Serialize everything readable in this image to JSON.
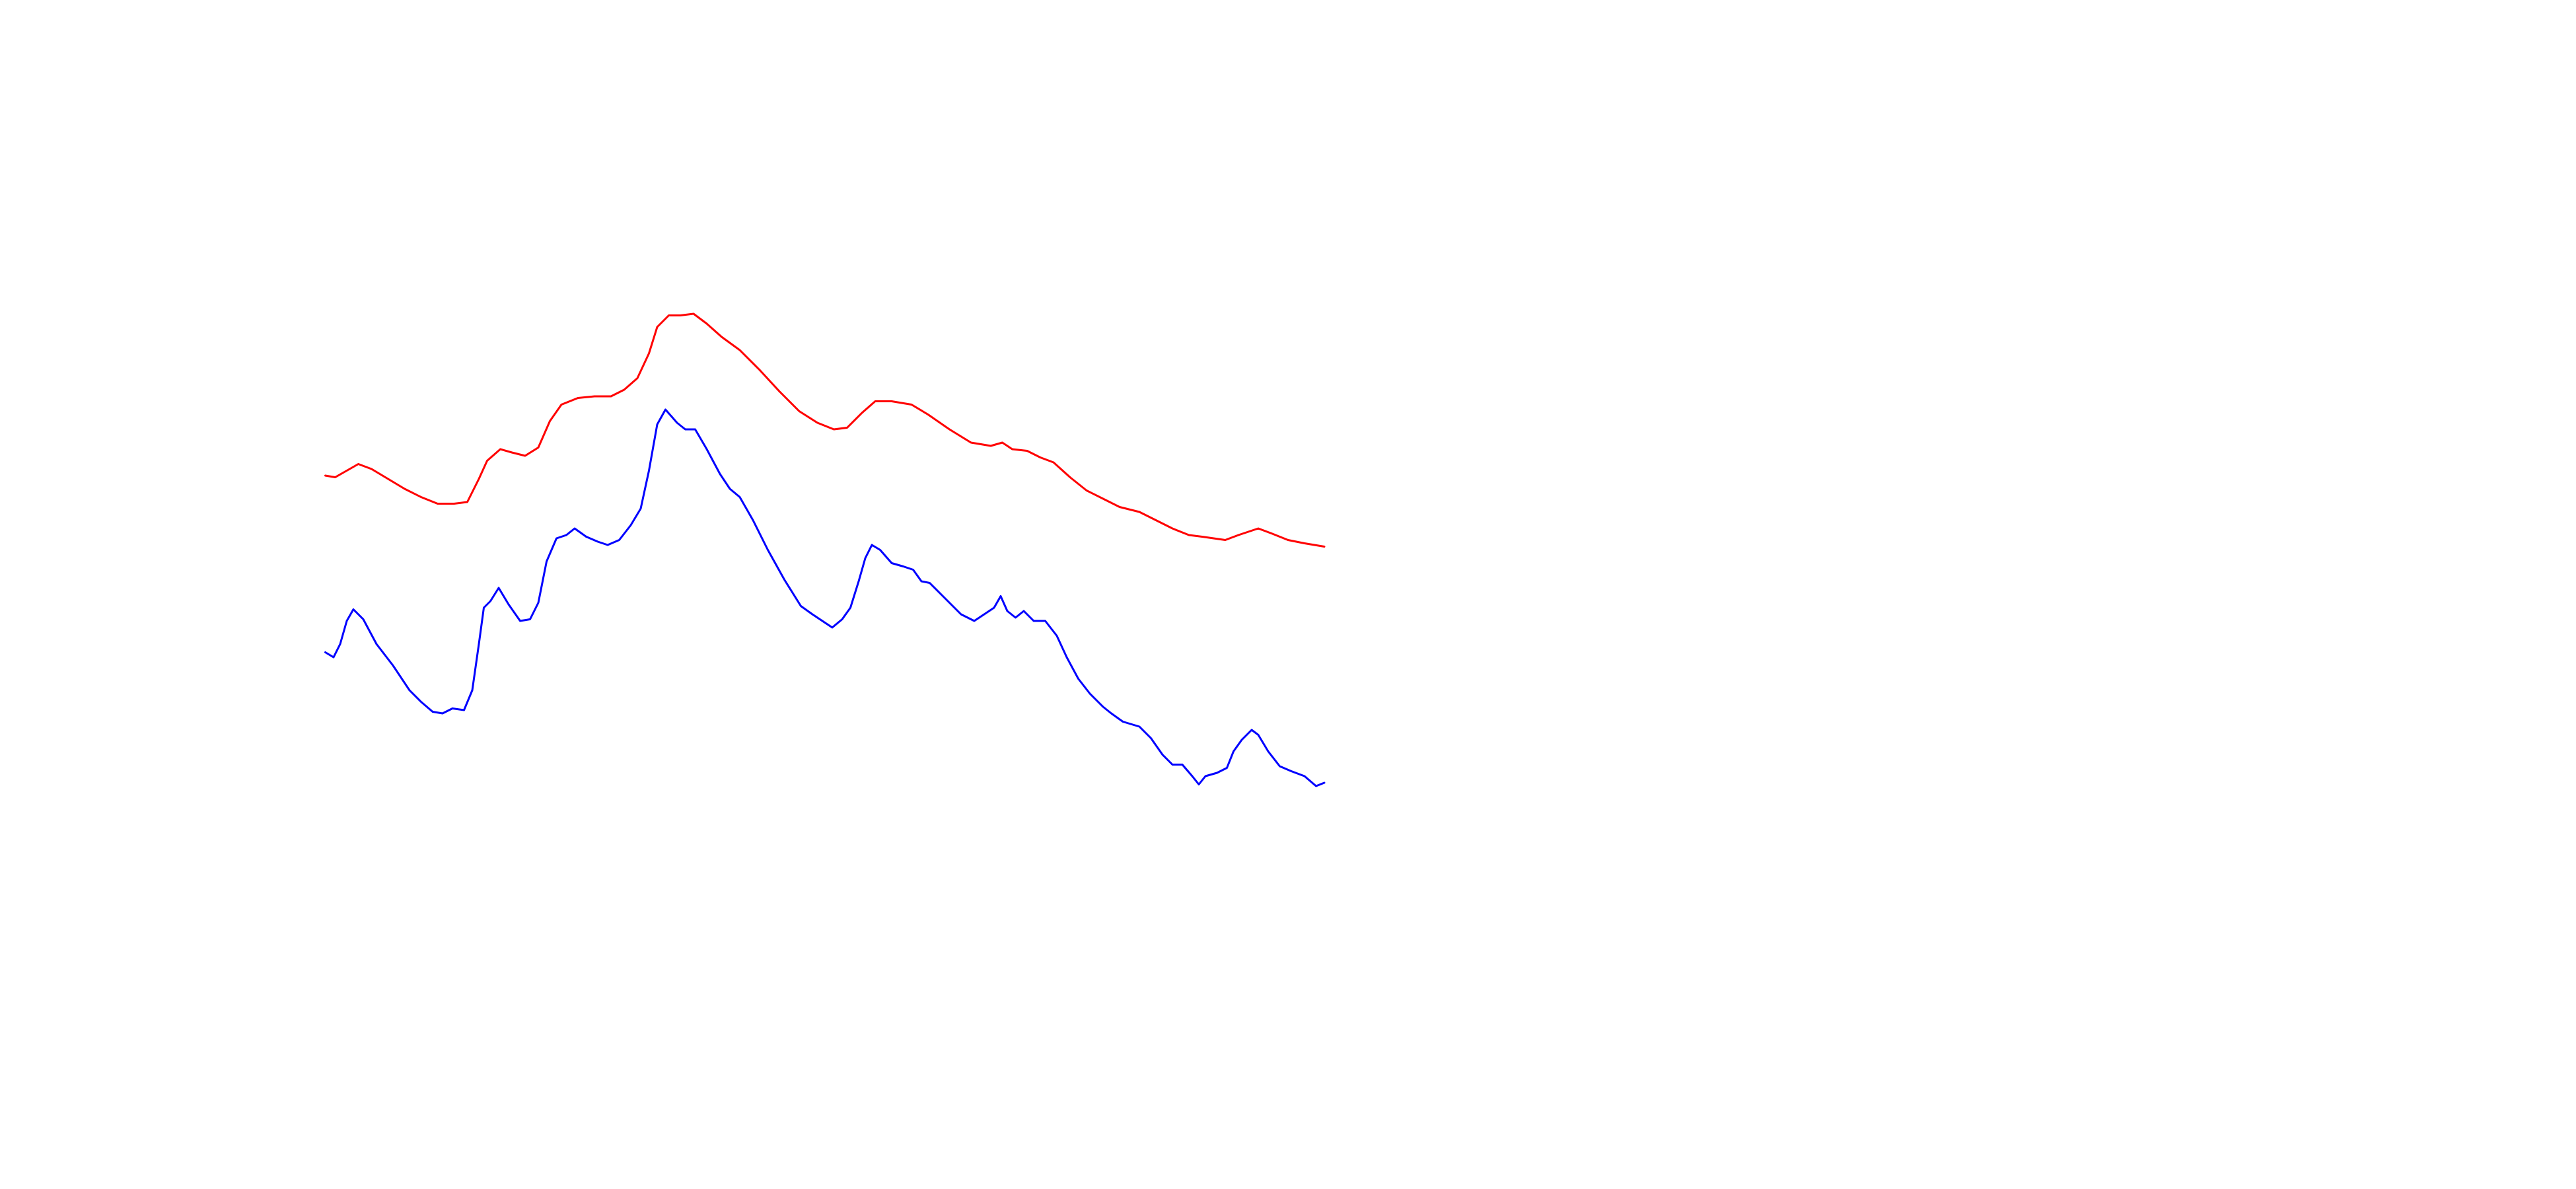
{
  "chart_data": {
    "type": "line",
    "xlim": [
      0,
      1560
    ],
    "ylim": [
      0,
      720
    ],
    "series": [
      {
        "color": "#ff0000",
        "x": [
          197,
          203,
          210,
          217,
          225,
          235,
          245,
          255,
          265,
          275,
          283,
          290,
          295,
          303,
          310,
          318,
          326,
          333,
          340,
          350,
          360,
          370,
          378,
          386,
          393,
          398,
          405,
          412,
          420,
          428,
          437,
          448,
          460,
          472,
          484,
          495,
          505,
          513,
          522,
          530,
          540,
          552,
          562,
          575,
          588,
          600,
          607,
          613,
          622,
          630,
          638,
          648,
          658,
          668,
          678,
          690,
          700,
          710,
          720,
          728,
          735,
          742,
          750,
          756,
          762,
          770,
          780,
          790,
          802
        ],
        "values": [
          432,
          431,
          435,
          439,
          436,
          430,
          424,
          419,
          415,
          415,
          416,
          430,
          441,
          448,
          446,
          444,
          449,
          465,
          475,
          479,
          480,
          480,
          484,
          491,
          506,
          522,
          529,
          529,
          530,
          524,
          516,
          508,
          496,
          483,
          471,
          464,
          460,
          461,
          470,
          477,
          477,
          475,
          469,
          460,
          452,
          450,
          452,
          448,
          447,
          443,
          440,
          431,
          423,
          418,
          413,
          410,
          405,
          400,
          396,
          395,
          394,
          393,
          396,
          398,
          400,
          397,
          393,
          391,
          389
        ]
      },
      {
        "color": "#0000ff",
        "x": [
          197,
          202,
          206,
          210,
          214,
          220,
          228,
          238,
          248,
          255,
          262,
          268,
          274,
          281,
          286,
          290,
          293,
          297,
          302,
          308,
          315,
          321,
          326,
          331,
          337,
          343,
          348,
          355,
          362,
          368,
          375,
          382,
          388,
          393,
          398,
          403,
          410,
          415,
          421,
          428,
          436,
          442,
          448,
          456,
          465,
          475,
          485,
          492,
          498,
          504,
          510,
          515,
          520,
          524,
          528,
          533,
          540,
          547,
          553,
          558,
          563,
          570,
          576,
          582,
          590,
          596,
          602,
          606,
          610,
          615,
          620,
          626,
          633,
          640,
          646,
          653,
          660,
          668,
          673,
          680,
          690,
          697,
          704,
          710,
          716,
          722,
          726,
          730,
          737,
          743,
          747,
          752,
          758,
          762,
          768,
          775,
          782,
          790,
          797,
          802
        ],
        "values": [
          325,
          322,
          330,
          344,
          351,
          345,
          330,
          317,
          302,
          295,
          289,
          288,
          291,
          290,
          302,
          330,
          352,
          356,
          364,
          354,
          344,
          345,
          355,
          380,
          394,
          396,
          400,
          395,
          392,
          390,
          393,
          402,
          412,
          435,
          463,
          472,
          464,
          460,
          460,
          448,
          433,
          424,
          419,
          405,
          387,
          369,
          353,
          348,
          344,
          340,
          345,
          352,
          368,
          382,
          390,
          387,
          379,
          377,
          375,
          368,
          367,
          360,
          354,
          348,
          344,
          348,
          352,
          359,
          350,
          346,
          350,
          344,
          344,
          335,
          322,
          309,
          300,
          292,
          288,
          283,
          280,
          273,
          263,
          257,
          257,
          250,
          245,
          250,
          252,
          255,
          265,
          272,
          278,
          275,
          265,
          256,
          253,
          250,
          244,
          246
        ]
      }
    ]
  }
}
